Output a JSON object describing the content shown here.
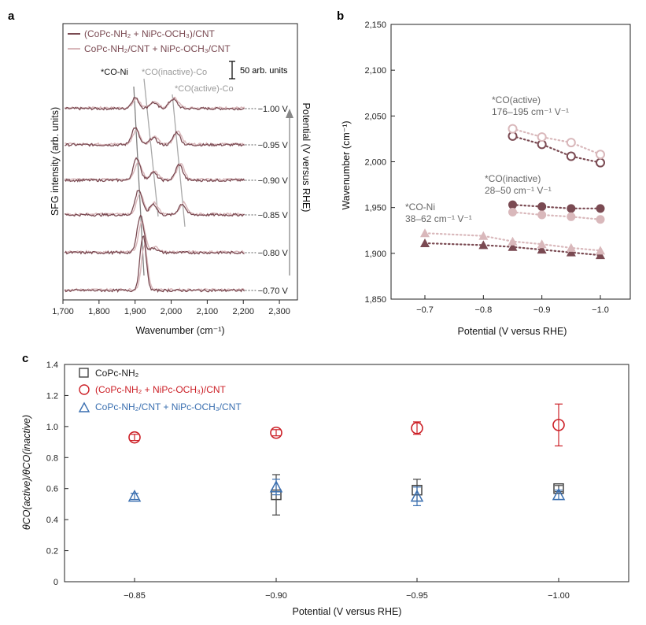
{
  "colors": {
    "dark": "#7a4a52",
    "light": "#d9b8bb",
    "red": "#cc2027",
    "blue": "#3a6fb0",
    "grey": "#444444",
    "guide": "#9a9a9a"
  },
  "chart_data": [
    {
      "type": "line",
      "panel": "a",
      "xlabel": "Wavenumber (cm⁻¹)",
      "ylabel": "SFG intensity (arb. units)",
      "right_label": "Potential (V versus RHE)",
      "xlim": [
        1700,
        2350
      ],
      "xticks": [
        "1,700",
        "1,800",
        "1,900",
        "2,000",
        "2,100",
        "2,200",
        "2,300"
      ],
      "xtick_values": [
        1700,
        1800,
        1900,
        2000,
        2100,
        2200,
        2300
      ],
      "legend": [
        {
          "series": "dark",
          "text": "(CoPc-NH₂ + NiPc-OCH₃)/CNT"
        },
        {
          "series": "light",
          "text": "CoPc-NH₂/CNT + NiPc-OCH₃/CNT"
        }
      ],
      "scale_bar_label": "50 arb. units",
      "peak_labels": [
        "*CO-Ni",
        "*CO(inactive)-Co",
        "*CO(active)-Co"
      ],
      "potentials": [
        "−1.00 V",
        "−0.95 V",
        "−0.90 V",
        "−0.85 V",
        "−0.80 V",
        "−0.70 V"
      ],
      "series": [
        {
          "potential": "−1.00 V",
          "peaks": [
            {
              "center": 1900,
              "amp": 14,
              "width": 14
            },
            {
              "center": 1950,
              "amp": 8,
              "width": 14
            },
            {
              "center": 2005,
              "amp": 12,
              "width": 16
            }
          ]
        },
        {
          "potential": "−0.95 V",
          "peaks": [
            {
              "center": 1900,
              "amp": 22,
              "width": 14
            },
            {
              "center": 1950,
              "amp": 9,
              "width": 14
            },
            {
              "center": 2015,
              "amp": 16,
              "width": 14
            }
          ]
        },
        {
          "potential": "−0.90 V",
          "peaks": [
            {
              "center": 1905,
              "amp": 28,
              "width": 14
            },
            {
              "center": 1950,
              "amp": 10,
              "width": 14
            },
            {
              "center": 2022,
              "amp": 20,
              "width": 14
            }
          ]
        },
        {
          "potential": "−0.85 V",
          "peaks": [
            {
              "center": 1910,
              "amp": 32,
              "width": 14
            },
            {
              "center": 1950,
              "amp": 14,
              "width": 14
            },
            {
              "center": 2030,
              "amp": 14,
              "width": 14
            }
          ]
        },
        {
          "potential": "−0.80 V",
          "peaks": [
            {
              "center": 1915,
              "amp": 48,
              "width": 13
            },
            {
              "center": 1952,
              "amp": 6,
              "width": 14
            }
          ]
        },
        {
          "potential": "−0.70 V",
          "peaks": [
            {
              "center": 1922,
              "amp": 70,
              "width": 12
            }
          ]
        }
      ]
    },
    {
      "type": "scatter",
      "panel": "b",
      "xlabel": "Potential (V versus RHE)",
      "ylabel": "Wavenumber (cm⁻¹)",
      "xticks": [
        "−0.7",
        "−0.8",
        "−0.9",
        "−1.0"
      ],
      "xtick_values": [
        -0.7,
        -0.8,
        -0.9,
        -1.0
      ],
      "ylim": [
        1850,
        2150
      ],
      "yticks": [
        "1,850",
        "1,900",
        "1,950",
        "2,000",
        "2,050",
        "2,100",
        "2,150"
      ],
      "ytick_values": [
        1850,
        1900,
        1950,
        2000,
        2050,
        2100,
        2150
      ],
      "annotations": [
        {
          "line1": "*CO(active)",
          "line2": "176–195 cm⁻¹ V⁻¹"
        },
        {
          "line1": "*CO(inactive)",
          "line2": "28–50 cm⁻¹ V⁻¹"
        },
        {
          "line1": "*CO-Ni",
          "line2": "38–62 cm⁻¹ V⁻¹"
        }
      ],
      "series": [
        {
          "name": "CO(active) dark",
          "marker": "open-circle",
          "color": "dark",
          "x": [
            -0.85,
            -0.9,
            -0.95,
            -1.0
          ],
          "y": [
            2028,
            2019,
            2006,
            1999
          ]
        },
        {
          "name": "CO(active) light",
          "marker": "open-circle",
          "color": "light",
          "x": [
            -0.85,
            -0.9,
            -0.95,
            -1.0
          ],
          "y": [
            2036,
            2027,
            2021,
            2008
          ]
        },
        {
          "name": "CO(inactive) dark",
          "marker": "filled-circle",
          "color": "dark",
          "x": [
            -0.85,
            -0.9,
            -0.95,
            -1.0
          ],
          "y": [
            1953,
            1951,
            1949,
            1949
          ]
        },
        {
          "name": "CO(inactive) light",
          "marker": "filled-circle",
          "color": "light",
          "x": [
            -0.85,
            -0.9,
            -0.95,
            -1.0
          ],
          "y": [
            1945,
            1942,
            1940,
            1937
          ]
        },
        {
          "name": "CO-Ni dark",
          "marker": "filled-triangle",
          "color": "dark",
          "x": [
            -0.7,
            -0.8,
            -0.85,
            -0.9,
            -0.95,
            -1.0
          ],
          "y": [
            1911,
            1909,
            1907,
            1904,
            1901,
            1898
          ]
        },
        {
          "name": "CO-Ni light",
          "marker": "filled-triangle",
          "color": "light",
          "x": [
            -0.7,
            -0.8,
            -0.85,
            -0.9,
            -0.95,
            -1.0
          ],
          "y": [
            1922,
            1919,
            1913,
            1910,
            1906,
            1903
          ]
        }
      ]
    },
    {
      "type": "scatter",
      "panel": "c",
      "xlabel": "Potential (V versus RHE)",
      "ylabel": "θCO(active)/θCO(inactive)",
      "categories": [
        "−0.85",
        "−0.90",
        "−0.95",
        "−1.00"
      ],
      "ylim": [
        0,
        1.4
      ],
      "yticks": [
        "0",
        "0.2",
        "0.4",
        "0.6",
        "0.8",
        "1.0",
        "1.2",
        "1.4"
      ],
      "ytick_values": [
        0,
        0.2,
        0.4,
        0.6,
        0.8,
        1.0,
        1.2,
        1.4
      ],
      "legend": [
        {
          "marker": "square",
          "color": "grey",
          "text": "CoPc-NH₂"
        },
        {
          "marker": "circle",
          "color": "red",
          "text": "(CoPc-NH₂ + NiPc-OCH₃)/CNT"
        },
        {
          "marker": "triangle",
          "color": "blue",
          "text": "CoPc-NH₂/CNT + NiPc-OCH₃/CNT"
        }
      ],
      "series": [
        {
          "name": "CoPc-NH₂",
          "marker": "square",
          "color": "grey",
          "values": [
            null,
            0.56,
            0.59,
            0.6
          ],
          "errors": [
            null,
            0.13,
            0.07,
            0.02
          ]
        },
        {
          "name": "(CoPc-NH₂ + NiPc-OCH₃)/CNT",
          "marker": "circle",
          "color": "red",
          "values": [
            0.93,
            0.96,
            0.99,
            1.01
          ],
          "errors": [
            0.02,
            0.02,
            0.04,
            0.135
          ]
        },
        {
          "name": "CoPc-NH₂/CNT + NiPc-OCH₃/CNT",
          "marker": "triangle",
          "color": "blue",
          "values": [
            0.55,
            0.61,
            0.55,
            0.56
          ],
          "errors": [
            0.02,
            0.05,
            0.06,
            0.03
          ]
        }
      ]
    }
  ],
  "panels": {
    "a": "a",
    "b": "b",
    "c": "c"
  }
}
